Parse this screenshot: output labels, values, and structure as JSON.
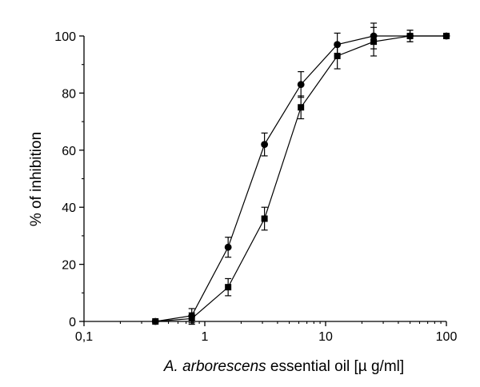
{
  "chart_data": {
    "type": "line",
    "x_scale": "log",
    "xlim": [
      0.1,
      100
    ],
    "ylim": [
      0,
      100
    ],
    "xlabel_italic": "A. arborescens",
    "xlabel_rest": " essential oil [µ g/ml]",
    "ylabel": "% of inhibition",
    "x_ticks": [
      0.1,
      1,
      10,
      100
    ],
    "x_tick_labels": [
      "0,1",
      "1",
      "10",
      "100"
    ],
    "y_ticks": [
      0,
      20,
      40,
      60,
      80,
      100
    ],
    "y_tick_labels": [
      "0",
      "20",
      "40",
      "60",
      "80",
      "100"
    ],
    "grid": false,
    "series": [
      {
        "marker": "circle",
        "color": "#000000",
        "x": [
          0.39,
          0.78,
          1.56,
          3.12,
          6.25,
          12.5,
          25,
          50,
          100
        ],
        "y": [
          0,
          2,
          26,
          62,
          83,
          97,
          100,
          100,
          100
        ],
        "err": [
          0,
          2.5,
          3.5,
          4,
          4.5,
          4,
          4.5,
          2,
          0
        ]
      },
      {
        "marker": "square",
        "color": "#000000",
        "x": [
          0.39,
          0.78,
          1.56,
          3.12,
          6.25,
          12.5,
          25,
          50,
          100
        ],
        "y": [
          0,
          1,
          12,
          36,
          75,
          93,
          98,
          100,
          100
        ],
        "err": [
          0,
          2,
          3,
          4,
          4,
          4.5,
          5,
          2,
          0
        ]
      }
    ]
  }
}
